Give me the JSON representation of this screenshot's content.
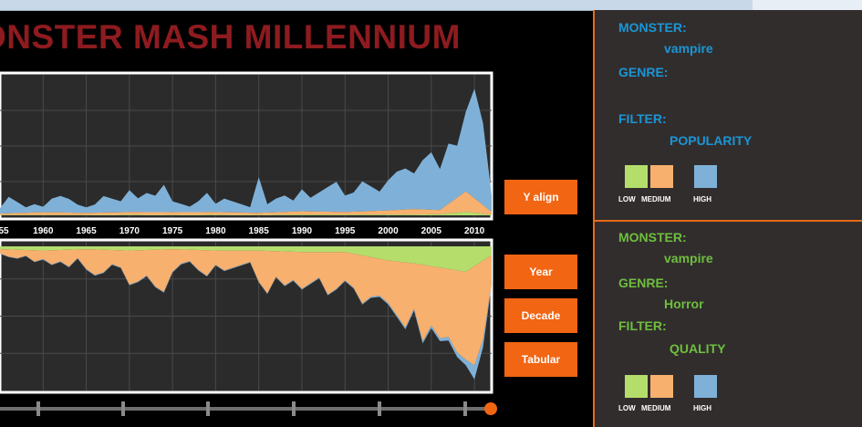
{
  "header": {
    "title": "ONSTER MASH MILLENNIUM"
  },
  "buttons": {
    "y_align": "Y align",
    "year": "Year",
    "decade": "Decade",
    "tabular": "Tabular"
  },
  "panel_top": {
    "monster_label": "MONSTER:",
    "monster_value": "vampire",
    "genre_label": "GENRE:",
    "genre_value": "",
    "filter_label": "FILTER:",
    "filter_value": "POPULARITY",
    "legend": [
      "LOW",
      "MEDIUM",
      "HIGH"
    ]
  },
  "panel_bottom": {
    "monster_label": "MONSTER:",
    "monster_value": "vampire",
    "genre_label": "GENRE:",
    "genre_value": "Horror",
    "filter_label": "FILTER:",
    "filter_value": "QUALITY",
    "legend": [
      "LOW",
      "MEDIUM",
      "HIGH"
    ]
  },
  "colors": {
    "low": "#b5dd6c",
    "medium": "#f8b06e",
    "high": "#7fb1d8",
    "accent": "#f26513",
    "title": "#8e1b1f",
    "panel_bg": "#322d2d",
    "blue_text": "#1a96d6",
    "green_text": "#6dbf3e"
  },
  "chart_data": [
    {
      "type": "area",
      "stacked": true,
      "x_ticks": [
        "55",
        "1960",
        "1965",
        "1970",
        "1975",
        "1980",
        "1985",
        "1990",
        "1995",
        "2000",
        "2005",
        "2010"
      ],
      "x_range": [
        1955,
        2012
      ],
      "grid": true,
      "series": [
        {
          "color": "#b5dd6c",
          "x": [
            1955,
            1960,
            1965,
            1970,
            1975,
            1980,
            1985,
            1990,
            1995,
            2000,
            2003,
            2006,
            2009,
            2012
          ],
          "values": [
            0.3,
            0.3,
            0.3,
            0.4,
            0.3,
            0.4,
            0.3,
            0.5,
            0.4,
            0.6,
            0.6,
            0.8,
            2.5,
            0.5
          ]
        },
        {
          "color": "#f8b06e",
          "x": [
            1955,
            1960,
            1965,
            1970,
            1975,
            1980,
            1985,
            1990,
            1995,
            2000,
            2003,
            2006,
            2009,
            2012
          ],
          "values": [
            1,
            2,
            1.5,
            2,
            2,
            2,
            1.5,
            2.5,
            2,
            3,
            4,
            3,
            15,
            2
          ]
        },
        {
          "color": "#7fb1d8",
          "x": [
            1955,
            1956,
            1957,
            1958,
            1959,
            1960,
            1961,
            1962,
            1963,
            1964,
            1965,
            1966,
            1967,
            1968,
            1969,
            1970,
            1971,
            1972,
            1973,
            1974,
            1975,
            1976,
            1977,
            1978,
            1979,
            1980,
            1981,
            1982,
            1983,
            1984,
            1985,
            1986,
            1987,
            1988,
            1989,
            1990,
            1991,
            1992,
            1993,
            1994,
            1995,
            1996,
            1997,
            1998,
            1999,
            2000,
            2001,
            2002,
            2003,
            2004,
            2005,
            2006,
            2007,
            2008,
            2009,
            2010,
            2011,
            2012
          ],
          "values": [
            4,
            12,
            8,
            4,
            6,
            4,
            10,
            12,
            10,
            6,
            4,
            6,
            12,
            10,
            8,
            16,
            10,
            14,
            12,
            20,
            8,
            6,
            4,
            8,
            14,
            6,
            10,
            8,
            6,
            4,
            26,
            6,
            10,
            12,
            8,
            16,
            10,
            14,
            18,
            22,
            12,
            14,
            22,
            18,
            14,
            22,
            28,
            30,
            26,
            36,
            42,
            30,
            44,
            38,
            58,
            80,
            60,
            12
          ]
        }
      ]
    },
    {
      "type": "area",
      "stacked": true,
      "direction": "down",
      "x_range": [
        1955,
        2012
      ],
      "grid": true,
      "series": [
        {
          "color": "#b5dd6c",
          "x": [
            1955,
            1960,
            1965,
            1970,
            1975,
            1980,
            1985,
            1990,
            1995,
            2000,
            2003,
            2006,
            2009,
            2012
          ],
          "values": [
            2,
            3,
            2,
            3,
            2,
            3,
            3,
            4,
            4,
            10,
            12,
            15,
            18,
            6
          ]
        },
        {
          "color": "#f8b06e",
          "x": [
            1955,
            1956,
            1957,
            1958,
            1959,
            1960,
            1961,
            1962,
            1963,
            1964,
            1965,
            1966,
            1967,
            1968,
            1969,
            1970,
            1971,
            1972,
            1973,
            1974,
            1975,
            1976,
            1977,
            1978,
            1979,
            1980,
            1981,
            1982,
            1983,
            1984,
            1985,
            1986,
            1987,
            1988,
            1989,
            1990,
            1991,
            1992,
            1993,
            1994,
            1995,
            1996,
            1997,
            1998,
            1999,
            2000,
            2001,
            2002,
            2003,
            2004,
            2005,
            2006,
            2007,
            2008,
            2009,
            2010,
            2011,
            2012
          ],
          "values": [
            3,
            5,
            6,
            4,
            8,
            6,
            10,
            8,
            12,
            6,
            14,
            18,
            16,
            10,
            12,
            24,
            22,
            18,
            26,
            30,
            16,
            10,
            8,
            14,
            18,
            10,
            14,
            12,
            10,
            8,
            22,
            30,
            18,
            24,
            20,
            26,
            22,
            18,
            30,
            26,
            20,
            24,
            34,
            28,
            26,
            30,
            38,
            46,
            32,
            54,
            42,
            50,
            48,
            58,
            62,
            70,
            56,
            20
          ]
        },
        {
          "color": "#7fb1d8",
          "x": [
            1955,
            1960,
            1965,
            1970,
            1975,
            1980,
            1985,
            1990,
            1995,
            2000,
            2003,
            2006,
            2009,
            2010,
            2012
          ],
          "values": [
            0.3,
            0.4,
            0.5,
            0.5,
            0.5,
            0.5,
            0.5,
            0.6,
            0.6,
            1,
            1.5,
            2,
            4,
            10,
            1
          ]
        }
      ]
    }
  ]
}
